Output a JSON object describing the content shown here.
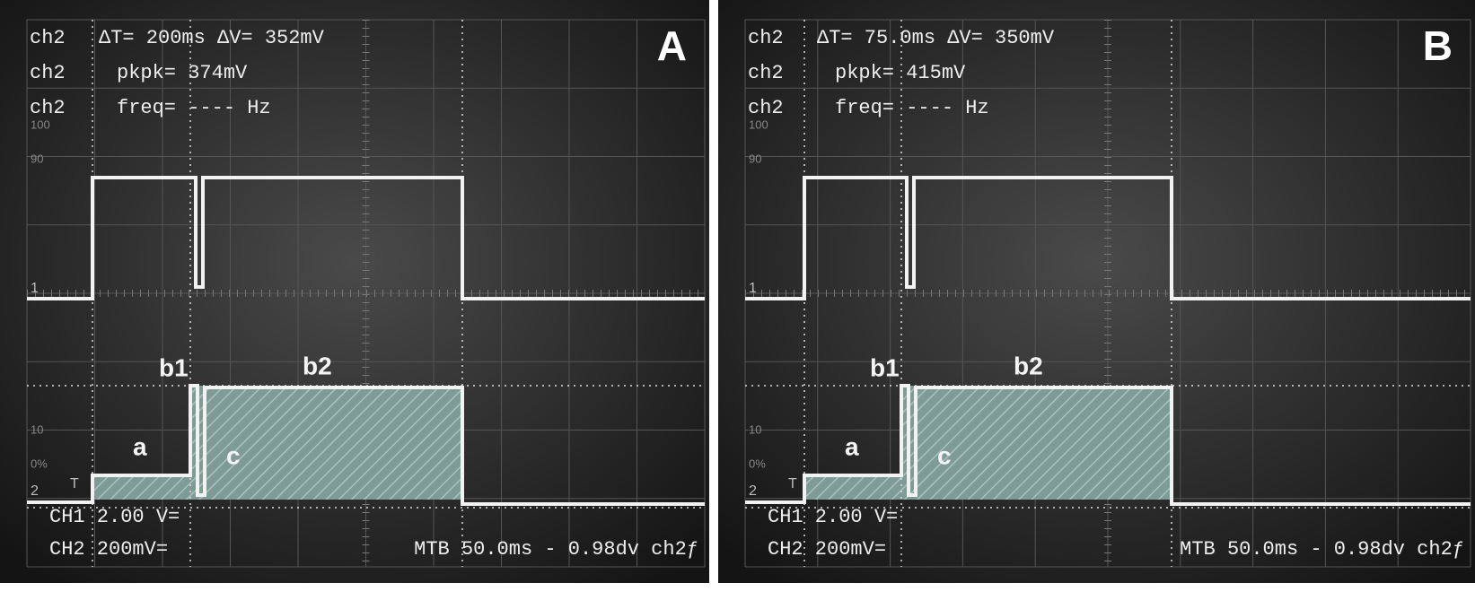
{
  "panels": [
    {
      "label": "A",
      "readouts": [
        {
          "channel": "ch2",
          "text": "ΔT= 200ms ΔV= 352mV"
        },
        {
          "channel": "ch2",
          "text": "pkpk=  374mV"
        },
        {
          "channel": "ch2",
          "text": "freq= ---- Hz"
        }
      ],
      "graticule_labels": [
        "100",
        "90",
        "10",
        "0%"
      ],
      "markers": [
        "1",
        "2",
        "T"
      ],
      "annotations": [
        "a",
        "b1",
        "b2",
        "c"
      ],
      "footer": [
        "CH1  2.00 V=",
        "CH2  200mV=",
        "MTB 50.0ms - 0.98dv ch2ƒ"
      ]
    },
    {
      "label": "B",
      "readouts": [
        {
          "channel": "ch2",
          "text": "ΔT= 75.0ms ΔV= 350mV"
        },
        {
          "channel": "ch2",
          "text": "pkpk=  415mV"
        },
        {
          "channel": "ch2",
          "text": "freq= ---- Hz"
        }
      ],
      "graticule_labels": [
        "100",
        "90",
        "10",
        "0%"
      ],
      "markers": [
        "1",
        "2",
        "T"
      ],
      "annotations": [
        "a",
        "b1",
        "b2",
        "c"
      ],
      "footer": [
        "CH1  2.00 V=",
        "CH2  200mV=",
        "MTB 50.0ms - 0.98dv ch2ƒ"
      ]
    }
  ]
}
